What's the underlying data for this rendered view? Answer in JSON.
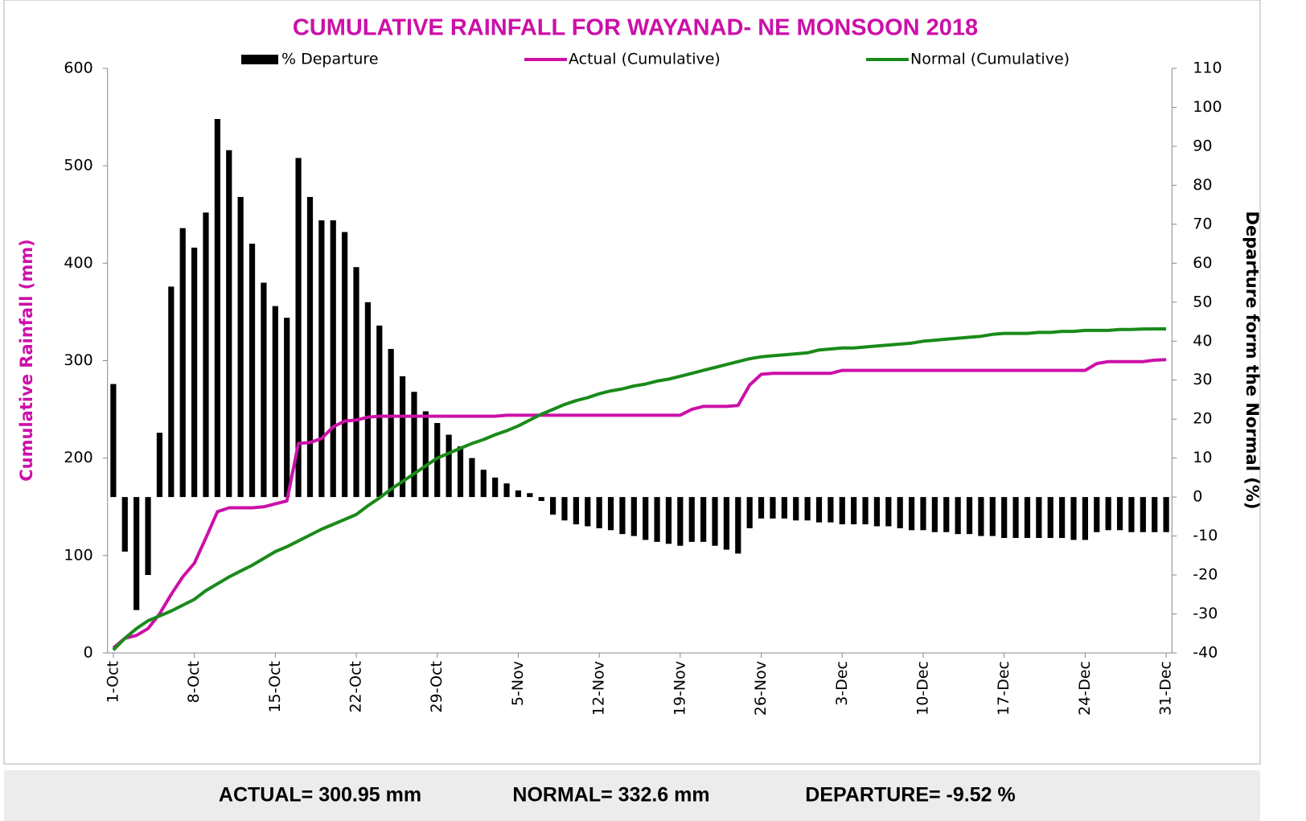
{
  "chart_data": {
    "type": "combo",
    "title": "CUMULATIVE RAINFALL FOR WAYANAD- NE MONSOON 2018",
    "y_label": "Cumulative Rainfall (mm)",
    "y2_label": "Departure form the Normal (%)",
    "categories": [
      "1-Oct",
      null,
      null,
      null,
      null,
      null,
      null,
      "8-Oct",
      null,
      null,
      null,
      null,
      null,
      null,
      "15-Oct",
      null,
      null,
      null,
      null,
      null,
      null,
      "22-Oct",
      null,
      null,
      null,
      null,
      null,
      null,
      "29-Oct",
      null,
      null,
      null,
      null,
      null,
      null,
      "5-Nov",
      null,
      null,
      null,
      null,
      null,
      null,
      "12-Nov",
      null,
      null,
      null,
      null,
      null,
      null,
      "19-Nov",
      null,
      null,
      null,
      null,
      null,
      null,
      "26-Nov",
      null,
      null,
      null,
      null,
      null,
      null,
      "3-Dec",
      null,
      null,
      null,
      null,
      null,
      null,
      "10-Dec",
      null,
      null,
      null,
      null,
      null,
      null,
      "17-Dec",
      null,
      null,
      null,
      null,
      null,
      null,
      "24-Dec",
      null,
      null,
      null,
      null,
      null,
      null,
      "31-Dec"
    ],
    "series": [
      {
        "name": "% Departure",
        "kind": "bar",
        "axis": "y2",
        "color": "#000000",
        "values": [
          29,
          -14,
          -29,
          -20,
          16.5,
          54,
          69,
          64,
          73,
          97,
          89,
          77,
          65,
          55,
          49,
          46,
          87,
          77,
          71,
          71,
          68,
          59,
          50,
          44,
          38,
          31,
          27,
          22,
          19,
          16,
          13,
          10,
          7,
          5,
          3.5,
          1.7,
          1,
          -1,
          -4.5,
          -6,
          -7,
          -7.5,
          -8,
          -8.5,
          -9.5,
          -10,
          -11,
          -11.5,
          -12,
          -12.5,
          -11.5,
          -11.5,
          -12.5,
          -13.5,
          -14.5,
          -8,
          -5.5,
          -5.5,
          -5.5,
          -6,
          -6,
          -6.5,
          -6.5,
          -7,
          -7,
          -7,
          -7.5,
          -7.5,
          -8,
          -8.5,
          -8.5,
          -9,
          -9,
          -9.5,
          -9.5,
          -10,
          -10,
          -10.5,
          -10.5,
          -10.5,
          -10.5,
          -10.5,
          -10.5,
          -11,
          -11,
          -9,
          -8.5,
          -8.5,
          -9,
          -9,
          -9,
          -9
        ]
      },
      {
        "name": "Actual (Cumulative)",
        "kind": "line",
        "axis": "y",
        "color": "#cc10a8",
        "values": [
          5,
          15,
          18,
          25,
          40,
          60,
          78,
          92,
          118,
          145,
          149,
          149,
          149,
          150,
          153,
          156,
          215,
          216,
          220,
          232,
          238,
          239,
          242,
          243,
          243,
          243,
          243,
          243,
          243,
          243,
          243,
          243,
          243,
          243,
          244,
          244,
          244,
          244,
          244,
          244,
          244,
          244,
          244,
          244,
          244,
          244,
          244,
          244,
          244,
          244,
          250,
          253,
          253,
          253,
          254,
          275,
          286,
          287,
          287,
          287,
          287,
          287,
          287,
          290,
          290,
          290,
          290,
          290,
          290,
          290,
          290,
          290,
          290,
          290,
          290,
          290,
          290,
          290,
          290,
          290,
          290,
          290,
          290,
          290,
          290,
          297,
          299,
          299,
          299,
          299,
          300.5,
          300.95
        ]
      },
      {
        "name": "Normal (Cumulative)",
        "kind": "line",
        "axis": "y",
        "color": "#1a8a1a",
        "values": [
          3,
          15,
          25,
          33,
          38,
          43,
          49,
          55,
          64,
          71,
          78,
          84,
          90,
          97,
          104,
          109,
          115,
          121,
          127,
          132,
          137,
          142,
          151,
          159,
          168,
          176,
          184,
          192,
          200,
          205,
          210,
          215,
          219,
          224,
          228,
          233,
          239,
          245,
          250,
          255,
          259,
          262,
          266,
          269,
          271,
          274,
          276,
          279,
          281,
          284,
          287,
          290,
          293,
          296,
          299,
          302,
          304,
          305,
          306,
          307,
          308,
          311,
          312,
          313,
          313,
          314,
          315,
          316,
          317,
          318,
          320,
          321,
          322,
          323,
          324,
          325,
          327,
          328,
          328,
          328,
          329,
          329,
          330,
          330,
          331,
          331,
          331,
          332,
          332,
          332.5,
          332.6,
          332.6
        ]
      }
    ],
    "ylim": [
      0,
      600
    ],
    "yticks": [
      0,
      100,
      200,
      300,
      400,
      500,
      600
    ],
    "y2lim": [
      -40,
      110
    ],
    "y2ticks": [
      -40,
      -30,
      -20,
      -10,
      0,
      10,
      20,
      30,
      40,
      50,
      60,
      70,
      80,
      90,
      100,
      110
    ],
    "annotations": [
      "ACTUAL= 300.95 mm",
      "NORMAL= 332.6 mm",
      "DEPARTURE= -9.52 %"
    ]
  }
}
